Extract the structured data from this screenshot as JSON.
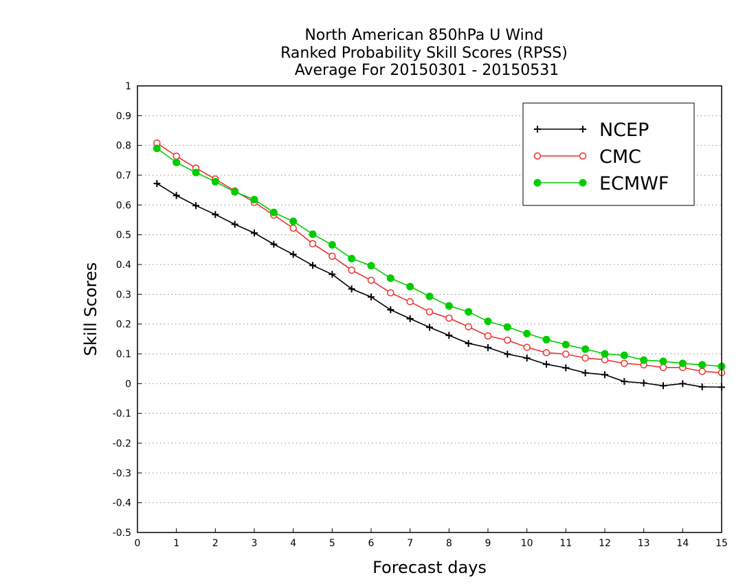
{
  "chart_data": {
    "type": "line",
    "title_lines": [
      "North American 850hPa U Wind",
      "Ranked Probability Skill Scores (RPSS)",
      "Average For 20150301 - 20150531"
    ],
    "xlabel": "Forecast days",
    "ylabel": "Skill Scores",
    "xlim": [
      0,
      15
    ],
    "ylim": [
      -0.5,
      1
    ],
    "xticks": [
      0,
      1,
      2,
      3,
      4,
      5,
      6,
      7,
      8,
      9,
      10,
      11,
      12,
      13,
      14,
      15
    ],
    "xtick_labels": [
      "0",
      "1",
      "2",
      "3",
      "4",
      "5",
      "6",
      "7",
      "8",
      "9",
      "10",
      "11",
      "12",
      "13",
      "14",
      "15"
    ],
    "yticks": [
      1,
      0.9,
      0.8,
      0.7,
      0.6,
      0.5,
      0.4,
      0.3,
      0.2,
      0.1,
      0,
      -0.1,
      -0.2,
      -0.3,
      -0.4,
      -0.5
    ],
    "ytick_labels": [
      "1",
      "0.9",
      "0.8",
      "0.7",
      "0.6",
      "0.5",
      "0.4",
      "0.3",
      "0.2",
      "0.1",
      "0",
      "-0.1",
      "-0.2",
      "-0.3",
      "-0.4",
      "-0.5"
    ],
    "grid": "horizontal-dotted",
    "legend_position": "top-right",
    "x": [
      0.5,
      1,
      1.5,
      2,
      2.5,
      3,
      3.5,
      4,
      4.5,
      5,
      5.5,
      6,
      6.5,
      7,
      7.5,
      8,
      8.5,
      9,
      9.5,
      10,
      10.5,
      11,
      11.5,
      12,
      12.5,
      13,
      13.5,
      14,
      14.5,
      15
    ],
    "series": [
      {
        "name": "NCEP",
        "color": "#000000",
        "marker": "plus",
        "values": [
          0.672,
          0.632,
          0.598,
          0.568,
          0.535,
          0.506,
          0.468,
          0.434,
          0.397,
          0.367,
          0.318,
          0.291,
          0.248,
          0.218,
          0.189,
          0.162,
          0.135,
          0.121,
          0.099,
          0.086,
          0.065,
          0.053,
          0.036,
          0.03,
          0.007,
          0.002,
          -0.007,
          0.0,
          -0.011,
          -0.012
        ]
      },
      {
        "name": "CMC",
        "color": "#ee3030",
        "marker": "open-circle",
        "values": [
          0.808,
          0.764,
          0.724,
          0.687,
          0.647,
          0.609,
          0.566,
          0.522,
          0.47,
          0.428,
          0.381,
          0.347,
          0.305,
          0.275,
          0.241,
          0.22,
          0.191,
          0.16,
          0.146,
          0.122,
          0.104,
          0.099,
          0.086,
          0.08,
          0.068,
          0.063,
          0.054,
          0.054,
          0.041,
          0.037
        ]
      },
      {
        "name": "ECMWF",
        "color": "#00cc00",
        "marker": "filled-circle",
        "values": [
          0.79,
          0.743,
          0.709,
          0.678,
          0.644,
          0.618,
          0.575,
          0.545,
          0.502,
          0.466,
          0.42,
          0.396,
          0.354,
          0.326,
          0.293,
          0.261,
          0.241,
          0.209,
          0.19,
          0.168,
          0.148,
          0.131,
          0.116,
          0.1,
          0.095,
          0.079,
          0.075,
          0.068,
          0.063,
          0.058
        ]
      }
    ]
  }
}
